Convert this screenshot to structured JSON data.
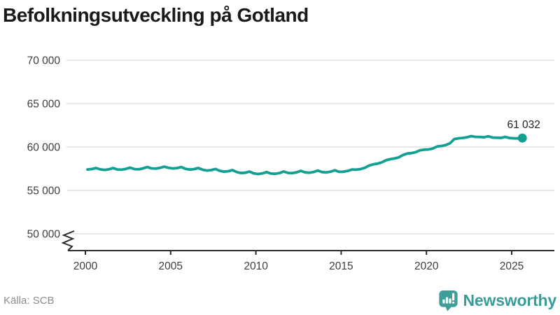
{
  "title": "Befolkningsutveckling på Gotland",
  "source": "Källa: SCB",
  "brand": {
    "name": "Newsworthy",
    "color": "#3A9C98"
  },
  "chart_data": {
    "type": "line",
    "title": "Befolkningsutveckling på Gotland",
    "line_color": "#11A091",
    "x_start": 2000.125,
    "x_step": 0.25,
    "values": [
      57400,
      57460,
      57580,
      57420,
      57360,
      57430,
      57570,
      57400,
      57390,
      57480,
      57620,
      57450,
      57430,
      57530,
      57690,
      57540,
      57510,
      57600,
      57730,
      57600,
      57530,
      57570,
      57690,
      57480,
      57400,
      57450,
      57580,
      57380,
      57290,
      57340,
      57470,
      57260,
      57160,
      57210,
      57340,
      57110,
      57000,
      57040,
      57170,
      56960,
      56890,
      56950,
      57110,
      56940,
      56910,
      56990,
      57180,
      57020,
      56990,
      57070,
      57250,
      57080,
      57040,
      57110,
      57290,
      57110,
      57070,
      57150,
      57320,
      57140,
      57150,
      57230,
      57400,
      57390,
      57450,
      57600,
      57850,
      58000,
      58080,
      58230,
      58470,
      58600,
      58680,
      58800,
      59080,
      59250,
      59300,
      59400,
      59620,
      59690,
      59720,
      59820,
      60060,
      60120,
      60220,
      60420,
      60900,
      61000,
      61050,
      61120,
      61250,
      61170,
      61150,
      61120,
      61230,
      61090,
      61070,
      61050,
      61160,
      61030,
      61000,
      60990,
      61032
    ],
    "x_ticks": [
      2000,
      2005,
      2010,
      2015,
      2020,
      2025
    ],
    "y_ticks": [
      {
        "value": 70000,
        "label": "70 000"
      },
      {
        "value": 65000,
        "label": "65 000"
      },
      {
        "value": 60000,
        "label": "60 000"
      },
      {
        "value": 55000,
        "label": "55 000"
      },
      {
        "value": 50000,
        "label": "50 000"
      }
    ],
    "ylim": [
      50000,
      70000
    ],
    "axis_break": true,
    "grid": "horizontal",
    "end_label": "61 032",
    "end_value": 61032
  }
}
